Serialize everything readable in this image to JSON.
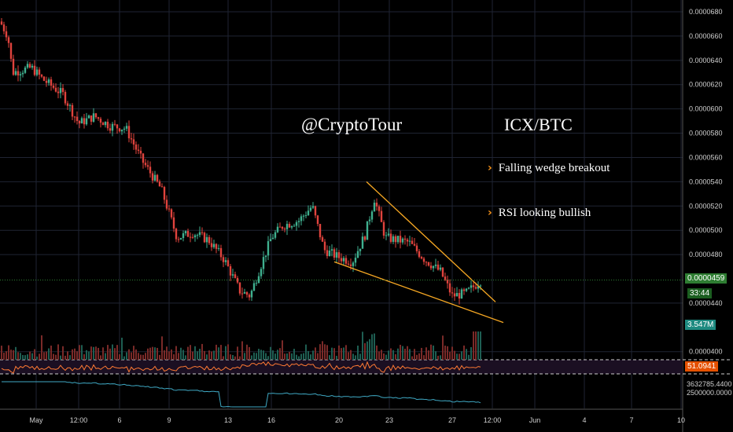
{
  "chart_data": {
    "type": "candlestick",
    "symbol_label": "ICX/BTC",
    "brand": "@CryptoTour",
    "annotations": [
      "Falling wedge breakout",
      "RSI looking bullish"
    ],
    "y_axis": {
      "ticks": [
        "0.0000680",
        "0.0000660",
        "0.0000640",
        "0.0000620",
        "0.0000600",
        "0.0000580",
        "0.0000560",
        "0.0000540",
        "0.0000520",
        "0.0000500",
        "0.0000480",
        "0.0000440",
        "0.0000400"
      ],
      "tick_values": [
        680,
        660,
        640,
        620,
        600,
        580,
        560,
        540,
        520,
        500,
        480,
        440,
        400
      ],
      "range": [
        400,
        680
      ],
      "unit": "1e-7 BTC"
    },
    "x_axis": {
      "labels": [
        "May",
        "12:00",
        "6",
        "9",
        "13",
        "16",
        "20",
        "23",
        "27",
        "12:00",
        "Jun",
        "4",
        "7",
        "10"
      ]
    },
    "price_anchors": [
      {
        "t": 0,
        "p": 672
      },
      {
        "t": 10,
        "p": 660
      },
      {
        "t": 16,
        "p": 630
      },
      {
        "t": 40,
        "p": 634
      },
      {
        "t": 55,
        "p": 624
      },
      {
        "t": 80,
        "p": 612
      },
      {
        "t": 100,
        "p": 588
      },
      {
        "t": 120,
        "p": 594
      },
      {
        "t": 140,
        "p": 586
      },
      {
        "t": 160,
        "p": 584
      },
      {
        "t": 180,
        "p": 558
      },
      {
        "t": 205,
        "p": 534
      },
      {
        "t": 225,
        "p": 494
      },
      {
        "t": 245,
        "p": 498
      },
      {
        "t": 265,
        "p": 492
      },
      {
        "t": 285,
        "p": 476
      },
      {
        "t": 305,
        "p": 450
      },
      {
        "t": 318,
        "p": 446
      },
      {
        "t": 330,
        "p": 468
      },
      {
        "t": 345,
        "p": 494
      },
      {
        "t": 360,
        "p": 504
      },
      {
        "t": 380,
        "p": 508
      },
      {
        "t": 397,
        "p": 520
      },
      {
        "t": 412,
        "p": 484
      },
      {
        "t": 430,
        "p": 478
      },
      {
        "t": 448,
        "p": 474
      },
      {
        "t": 464,
        "p": 496
      },
      {
        "t": 476,
        "p": 526
      },
      {
        "t": 490,
        "p": 494
      },
      {
        "t": 505,
        "p": 492
      },
      {
        "t": 520,
        "p": 490
      },
      {
        "t": 540,
        "p": 476
      },
      {
        "t": 560,
        "p": 466
      },
      {
        "t": 575,
        "p": 446
      },
      {
        "t": 592,
        "p": 448
      },
      {
        "t": 612,
        "p": 459
      }
    ],
    "last_price": "0.0000459",
    "countdown": "33:44",
    "volume_last": "3.547M",
    "rsi_last": "51.0941",
    "indicator_value": "3632785.4400",
    "indicator_axis_label": "2500000.0000",
    "wedge": {
      "upper": [
        {
          "t": 466,
          "p": 540
        },
        {
          "t": 630,
          "p": 441
        }
      ],
      "lower": [
        {
          "t": 425,
          "p": 474
        },
        {
          "t": 640,
          "p": 424
        }
      ]
    },
    "colors": {
      "up": "#3fb08f",
      "down": "#e0433d",
      "wedge": "#f7a823",
      "rsi": "#ff7a33",
      "obv": "#3fa9c4",
      "last": "#4caf50",
      "volume_tag": "#26a69a",
      "rsi_tag": "#ff6f00"
    },
    "grid": true
  }
}
